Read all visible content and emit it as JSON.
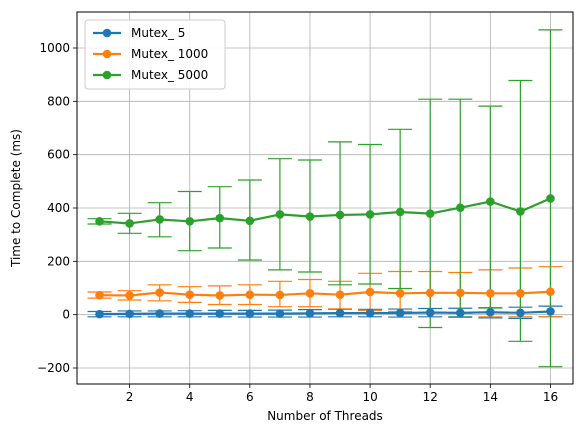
{
  "chart_data": {
    "type": "line",
    "title": "",
    "xlabel": "Number of Threads",
    "ylabel": "Time to Complete (ms)",
    "xlim": [
      0.25,
      16.75
    ],
    "ylim": [
      -260,
      1135
    ],
    "x_ticks": [
      2,
      4,
      6,
      8,
      10,
      12,
      14,
      16
    ],
    "y_ticks": [
      -200,
      0,
      200,
      400,
      600,
      800,
      1000
    ],
    "x_tick_labels": [
      "2",
      "4",
      "6",
      "8",
      "10",
      "12",
      "14",
      "16"
    ],
    "y_tick_labels": [
      "−200",
      "0",
      "200",
      "400",
      "600",
      "800",
      "1000"
    ],
    "grid": true,
    "legend_position": "upper-left",
    "x": [
      1,
      2,
      3,
      4,
      5,
      6,
      7,
      8,
      9,
      10,
      11,
      12,
      13,
      14,
      15,
      16
    ],
    "series": [
      {
        "name": "Mutex_ 5",
        "color": "#1f77b4",
        "values": [
          2,
          3,
          4,
          4,
          4,
          4,
          4,
          5,
          6,
          6,
          6,
          8,
          7,
          9,
          7,
          12
        ],
        "err_low": [
          -8,
          -8,
          -8,
          -8,
          -8,
          -9,
          -9,
          -9,
          -8,
          -8,
          -9,
          -8,
          -8,
          -12,
          -14,
          -8
        ],
        "err_high": [
          12,
          14,
          14,
          15,
          16,
          16,
          17,
          19,
          20,
          20,
          21,
          23,
          24,
          26,
          28,
          32
        ]
      },
      {
        "name": "Mutex_ 1000",
        "color": "#ff7f0e",
        "values": [
          73,
          72,
          83,
          75,
          72,
          75,
          74,
          80,
          75,
          85,
          80,
          82,
          82,
          80,
          80,
          86
        ],
        "err_low": [
          62,
          55,
          52,
          46,
          38,
          38,
          30,
          30,
          22,
          16,
          12,
          8,
          5,
          -8,
          -8,
          -8
        ],
        "err_high": [
          85,
          90,
          112,
          105,
          108,
          112,
          125,
          132,
          125,
          155,
          162,
          162,
          158,
          168,
          175,
          180
        ]
      },
      {
        "name": "Mutex_ 5000",
        "color": "#2ca02c",
        "values": [
          350,
          342,
          357,
          350,
          362,
          352,
          376,
          368,
          374,
          376,
          385,
          379,
          401,
          424,
          387,
          436
        ],
        "err_low": [
          340,
          305,
          292,
          240,
          250,
          205,
          168,
          160,
          112,
          115,
          98,
          -48,
          -10,
          25,
          -100,
          -195
        ],
        "err_high": [
          360,
          380,
          420,
          462,
          480,
          505,
          585,
          580,
          648,
          638,
          695,
          808,
          808,
          782,
          878,
          1068
        ]
      }
    ]
  }
}
